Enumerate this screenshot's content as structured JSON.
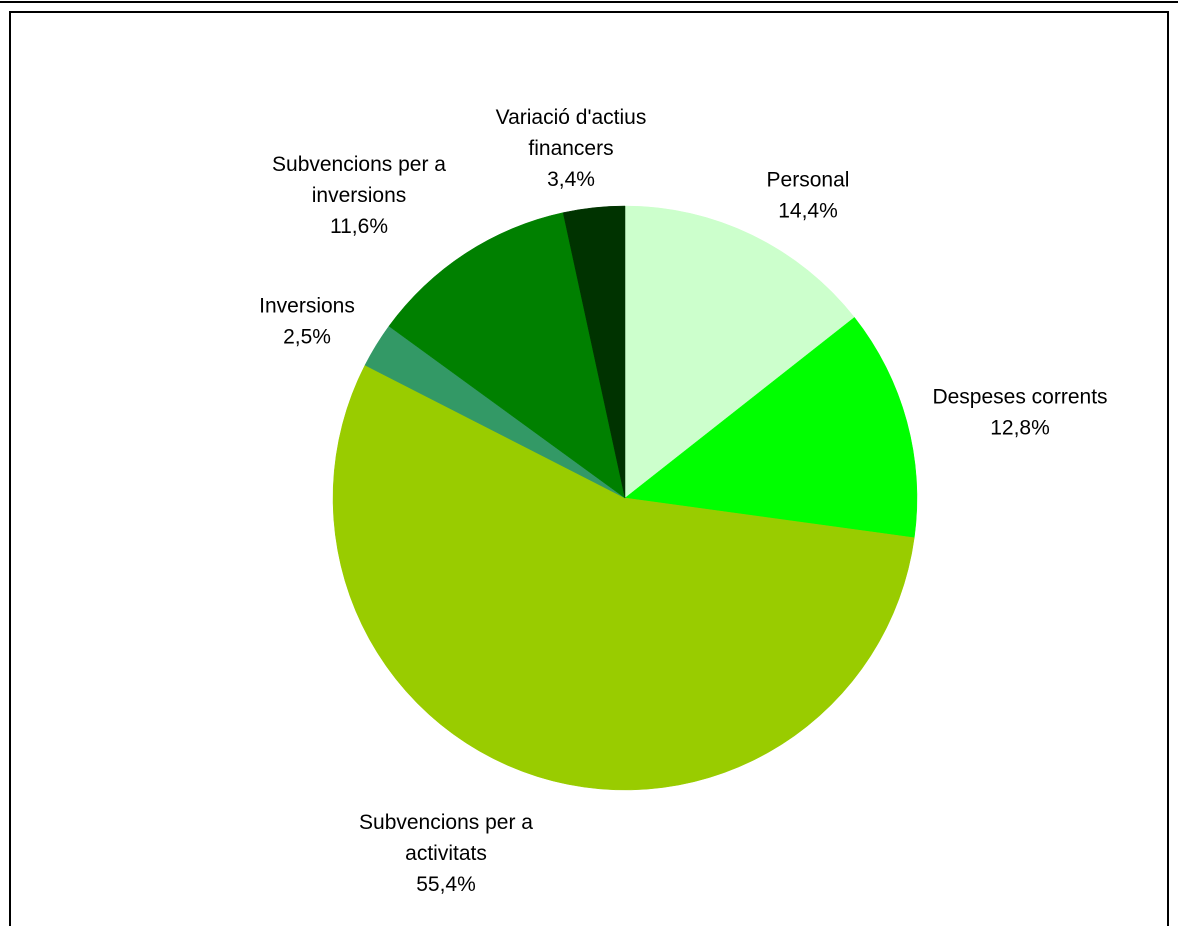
{
  "chart_data": {
    "type": "pie",
    "title": "",
    "start_angle_deg": 0,
    "direction": "clockwise",
    "slices": [
      {
        "label": [
          "Personal"
        ],
        "value_text": "14,4%",
        "value": 14.4,
        "color": "#ccffcc"
      },
      {
        "label": [
          "Despeses corrents"
        ],
        "value_text": "12,8%",
        "value": 12.8,
        "color": "#00ff00"
      },
      {
        "label": [
          "Subvencions per a",
          "activitats"
        ],
        "value_text": "55,4%",
        "value": 55.4,
        "color": "#99cc00"
      },
      {
        "label": [
          "Inversions"
        ],
        "value_text": "2,5%",
        "value": 2.5,
        "color": "#339966"
      },
      {
        "label": [
          "Subvencions per a",
          "inversions"
        ],
        "value_text": "11,6%",
        "value": 11.6,
        "color": "#008000"
      },
      {
        "label": [
          "Variació d'actius",
          "financers"
        ],
        "value_text": "3,4%",
        "value": 3.4,
        "color": "#003300"
      }
    ]
  }
}
